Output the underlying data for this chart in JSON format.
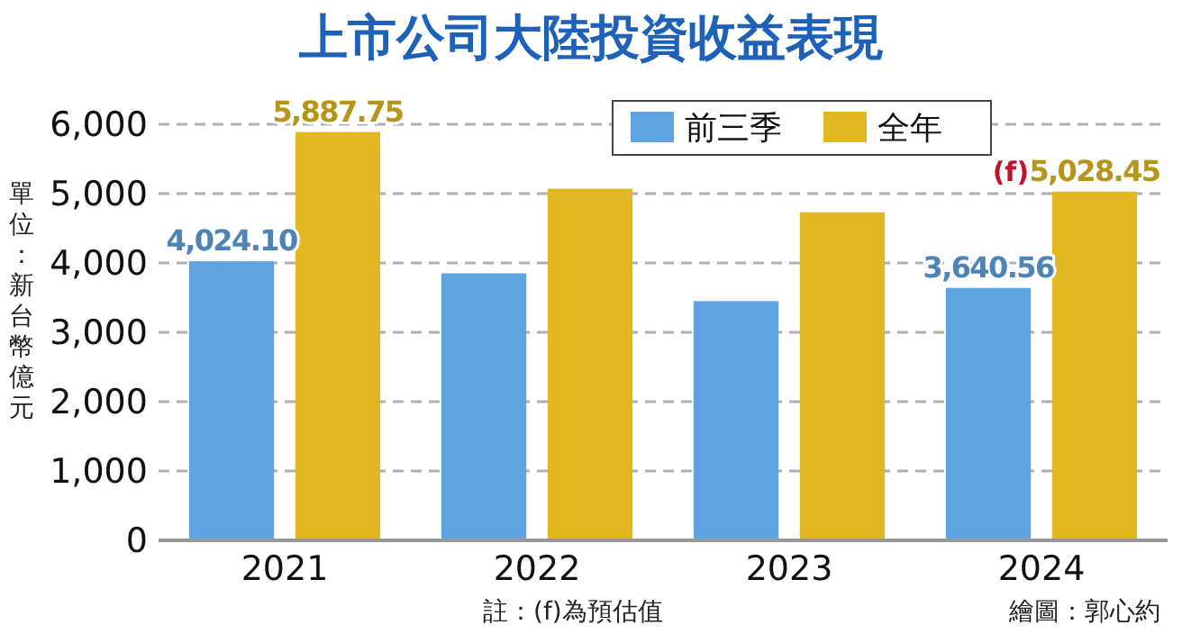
{
  "chart_data": {
    "type": "bar",
    "title": "上市公司大陸投資收益表現",
    "ylabel": "單位：新台幣億元",
    "categories": [
      "2021",
      "2022",
      "2023",
      "2024"
    ],
    "series": [
      {
        "name": "前三季",
        "color": "#5fa3e0",
        "values": [
          4024.1,
          3850,
          3450,
          3640.56
        ],
        "value_labels": [
          "4,024.10",
          null,
          null,
          "3,640.56"
        ]
      },
      {
        "name": "全年",
        "color": "#e2b822",
        "values": [
          5887.75,
          5070,
          4730,
          5028.45
        ],
        "value_labels": [
          "5,887.75",
          null,
          null,
          "5,028.45"
        ]
      }
    ],
    "ylim": [
      0,
      6000
    ],
    "yticks": [
      {
        "value": 0,
        "label": "0"
      },
      {
        "value": 1000,
        "label": "1,000"
      },
      {
        "value": 2000,
        "label": "2,000"
      },
      {
        "value": 3000,
        "label": "3,000"
      },
      {
        "value": 4000,
        "label": "4,000"
      },
      {
        "value": 5000,
        "label": "5,000"
      },
      {
        "value": 6000,
        "label": "6,000"
      }
    ],
    "grid": "y",
    "legend": "top right",
    "annotations": [
      "(f)",
      "註：(f)為預估值",
      "繪圖：郭心約"
    ]
  }
}
